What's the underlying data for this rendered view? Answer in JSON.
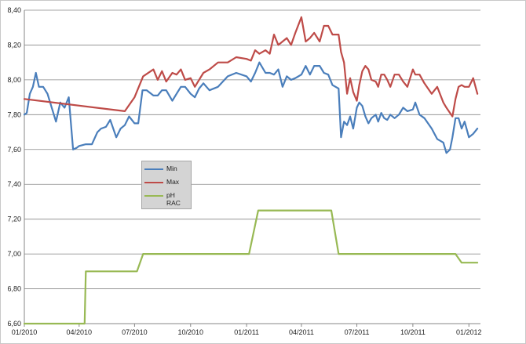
{
  "chart_data": {
    "type": "line",
    "title": "",
    "xlabel": "",
    "ylabel": "",
    "ylim": [
      6.6,
      8.4
    ],
    "ytick_labels": [
      "6,60",
      "6,80",
      "7,00",
      "7,20",
      "7,40",
      "7,60",
      "7,80",
      "8,00",
      "8,20",
      "8,40"
    ],
    "x_range": [
      "2010-01-01",
      "2012-01-20"
    ],
    "xtick_labels": [
      "01/2010",
      "04/2010",
      "07/2010",
      "10/2010",
      "01/2011",
      "04/2011",
      "07/2011",
      "10/2011",
      "01/2012"
    ],
    "grid": "horizontal",
    "legend": "inside-left",
    "series": [
      {
        "name": "Min",
        "color": "#4a7ebb",
        "x": [
          "2010-01-01",
          "2010-01-05",
          "2010-01-10",
          "2010-01-15",
          "2010-01-20",
          "2010-01-25",
          "2010-02-01",
          "2010-02-08",
          "2010-02-15",
          "2010-02-22",
          "2010-03-01",
          "2010-03-08",
          "2010-03-15",
          "2010-03-22",
          "2010-03-28",
          "2010-04-01",
          "2010-04-12",
          "2010-04-22",
          "2010-05-01",
          "2010-05-07",
          "2010-05-15",
          "2010-05-22",
          "2010-06-01",
          "2010-06-08",
          "2010-06-15",
          "2010-06-22",
          "2010-07-01",
          "2010-07-07",
          "2010-07-14",
          "2010-07-21",
          "2010-08-01",
          "2010-08-08",
          "2010-08-15",
          "2010-08-22",
          "2010-09-01",
          "2010-09-08",
          "2010-09-15",
          "2010-09-22",
          "2010-10-01",
          "2010-10-08",
          "2010-10-15",
          "2010-10-22",
          "2010-11-01",
          "2010-11-15",
          "2010-12-01",
          "2010-12-15",
          "2011-01-01",
          "2011-01-08",
          "2011-01-15",
          "2011-01-22",
          "2011-02-01",
          "2011-02-08",
          "2011-02-15",
          "2011-02-22",
          "2011-03-01",
          "2011-03-08",
          "2011-03-15",
          "2011-03-22",
          "2011-04-01",
          "2011-04-08",
          "2011-04-15",
          "2011-04-22",
          "2011-05-01",
          "2011-05-08",
          "2011-05-15",
          "2011-05-22",
          "2011-06-01",
          "2011-06-05",
          "2011-06-10",
          "2011-06-15",
          "2011-06-20",
          "2011-06-25",
          "2011-07-01",
          "2011-07-05",
          "2011-07-10",
          "2011-07-15",
          "2011-07-20",
          "2011-07-25",
          "2011-08-01",
          "2011-08-05",
          "2011-08-10",
          "2011-08-15",
          "2011-08-20",
          "2011-08-25",
          "2011-09-01",
          "2011-09-08",
          "2011-09-15",
          "2011-09-22",
          "2011-10-01",
          "2011-10-05",
          "2011-10-12",
          "2011-10-20",
          "2011-11-01",
          "2011-11-10",
          "2011-11-20",
          "2011-11-25",
          "2011-12-01",
          "2011-12-05",
          "2011-12-10",
          "2011-12-15",
          "2011-12-20",
          "2011-12-25",
          "2012-01-01",
          "2012-01-08",
          "2012-01-15"
        ],
        "y": [
          7.8,
          7.81,
          7.92,
          7.96,
          8.04,
          7.96,
          7.96,
          7.92,
          7.84,
          7.76,
          7.87,
          7.84,
          7.9,
          7.6,
          7.61,
          7.62,
          7.63,
          7.63,
          7.7,
          7.72,
          7.73,
          7.77,
          7.67,
          7.72,
          7.74,
          7.79,
          7.75,
          7.75,
          7.94,
          7.94,
          7.91,
          7.91,
          7.94,
          7.94,
          7.88,
          7.92,
          7.96,
          7.96,
          7.92,
          7.9,
          7.95,
          7.98,
          7.94,
          7.96,
          8.02,
          8.04,
          8.02,
          7.99,
          8.04,
          8.1,
          8.04,
          8.04,
          8.03,
          8.06,
          7.96,
          8.02,
          8.0,
          8.01,
          8.03,
          8.08,
          8.03,
          8.08,
          8.08,
          8.04,
          8.03,
          7.97,
          7.95,
          7.67,
          7.76,
          7.74,
          7.79,
          7.72,
          7.84,
          7.87,
          7.85,
          7.79,
          7.75,
          7.78,
          7.8,
          7.76,
          7.81,
          7.78,
          7.77,
          7.8,
          7.78,
          7.8,
          7.84,
          7.82,
          7.83,
          7.87,
          7.8,
          7.78,
          7.72,
          7.66,
          7.64,
          7.58,
          7.6,
          7.67,
          7.78,
          7.78,
          7.72,
          7.76,
          7.67,
          7.69,
          7.72
        ]
      },
      {
        "name": "Max",
        "color": "#be4b48",
        "x": [
          "2010-01-01",
          "2010-06-15",
          "2010-07-01",
          "2010-07-15",
          "2010-08-01",
          "2010-08-08",
          "2010-08-15",
          "2010-08-22",
          "2010-09-01",
          "2010-09-08",
          "2010-09-15",
          "2010-09-22",
          "2010-10-01",
          "2010-10-08",
          "2010-10-15",
          "2010-10-22",
          "2010-11-01",
          "2010-11-15",
          "2010-12-01",
          "2010-12-15",
          "2011-01-01",
          "2011-01-08",
          "2011-01-15",
          "2011-01-22",
          "2011-02-01",
          "2011-02-08",
          "2011-02-15",
          "2011-02-22",
          "2011-03-01",
          "2011-03-08",
          "2011-03-15",
          "2011-03-22",
          "2011-04-01",
          "2011-04-08",
          "2011-04-15",
          "2011-04-22",
          "2011-05-01",
          "2011-05-08",
          "2011-05-15",
          "2011-05-22",
          "2011-06-01",
          "2011-06-05",
          "2011-06-10",
          "2011-06-15",
          "2011-06-20",
          "2011-06-25",
          "2011-07-01",
          "2011-07-05",
          "2011-07-10",
          "2011-07-15",
          "2011-07-20",
          "2011-07-25",
          "2011-08-01",
          "2011-08-05",
          "2011-08-10",
          "2011-08-15",
          "2011-08-20",
          "2011-08-25",
          "2011-09-01",
          "2011-09-08",
          "2011-09-15",
          "2011-09-22",
          "2011-10-01",
          "2011-10-05",
          "2011-10-12",
          "2011-10-20",
          "2011-11-01",
          "2011-11-10",
          "2011-11-20",
          "2011-11-25",
          "2011-12-01",
          "2011-12-05",
          "2011-12-10",
          "2011-12-15",
          "2011-12-20",
          "2011-12-25",
          "2012-01-01",
          "2012-01-08",
          "2012-01-15"
        ],
        "y": [
          7.89,
          7.82,
          7.9,
          8.02,
          8.06,
          8.0,
          8.05,
          7.99,
          8.04,
          8.03,
          8.06,
          8.0,
          8.01,
          7.96,
          8.0,
          8.04,
          8.06,
          8.1,
          8.1,
          8.13,
          8.12,
          8.11,
          8.17,
          8.15,
          8.17,
          8.15,
          8.26,
          8.2,
          8.22,
          8.24,
          8.2,
          8.27,
          8.36,
          8.22,
          8.24,
          8.27,
          8.22,
          8.31,
          8.31,
          8.26,
          8.26,
          8.16,
          8.1,
          7.92,
          8.01,
          7.93,
          7.88,
          7.97,
          8.05,
          8.08,
          8.06,
          8.0,
          7.99,
          7.96,
          8.03,
          8.03,
          8.0,
          7.96,
          8.03,
          8.03,
          7.99,
          7.96,
          8.06,
          8.03,
          8.03,
          7.98,
          7.92,
          7.96,
          7.87,
          7.84,
          7.81,
          7.79,
          7.89,
          7.96,
          7.97,
          7.96,
          7.96,
          8.01,
          7.92
        ]
      },
      {
        "name": "pH\nRAC",
        "color": "#98b954",
        "x": [
          "2010-01-01",
          "2010-04-10",
          "2010-04-12",
          "2010-07-05",
          "2010-07-15",
          "2011-01-05",
          "2011-01-20",
          "2011-05-20",
          "2011-06-01",
          "2011-12-10",
          "2011-12-20",
          "2012-01-15"
        ],
        "y": [
          6.6,
          6.6,
          6.9,
          6.9,
          7.0,
          7.0,
          7.25,
          7.25,
          7.0,
          7.0,
          6.95,
          6.95
        ]
      }
    ]
  }
}
